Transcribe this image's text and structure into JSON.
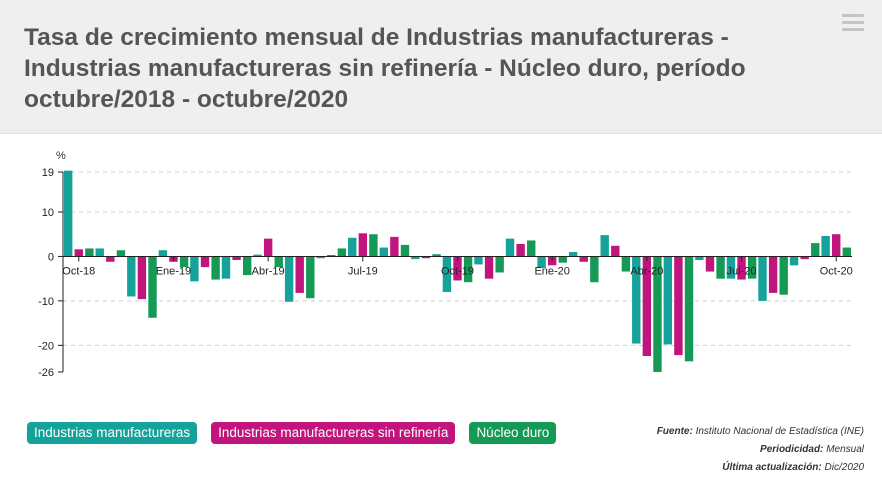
{
  "header": {
    "title": "Tasa de crecimiento mensual de Industrias manufactureras - Industrias manufactureras sin refinería - Núcleo duro, período octubre/2018 - octubre/2020",
    "menu_icon": "hamburger-menu-icon"
  },
  "legend": {
    "items": [
      {
        "label": "Industrias manufactureras",
        "color": "#14a29a"
      },
      {
        "label": "Industrias manufactureras sin refinería",
        "color": "#c1157d"
      },
      {
        "label": "Núcleo duro",
        "color": "#159a56"
      }
    ]
  },
  "source": {
    "fuente_label": "Fuente:",
    "fuente_value": "Instituto Nacional de Estadística (INE)",
    "periodicidad_label": "Periodicidad:",
    "periodicidad_value": "Mensual",
    "actualizacion_label": "Última actualización:",
    "actualizacion_value": "Dic/2020"
  },
  "chart_data": {
    "type": "bar",
    "y_unit": "%",
    "ylim": [
      -26,
      19
    ],
    "y_ticks": [
      19,
      10,
      0,
      -10,
      -20,
      -26
    ],
    "grid": true,
    "legend_position": "bottom-left",
    "categories": [
      "Oct-18",
      "Nov-18",
      "Dic-18",
      "Ene-19",
      "Feb-19",
      "Mar-19",
      "Abr-19",
      "May-19",
      "Jun-19",
      "Jul-19",
      "Ago-19",
      "Sep-19",
      "Oct-19",
      "Nov-19",
      "Dic-19",
      "Ene-20",
      "Feb-20",
      "Mar-20",
      "Abr-20",
      "May-20",
      "Jun-20",
      "Jul-20",
      "Ago-20",
      "Sep-20",
      "Oct-20"
    ],
    "x_tick_labels": [
      "Oct-18",
      "Ene-19",
      "Abr-19",
      "Jul-19",
      "Oct-19",
      "Ene-20",
      "Abr-20",
      "Jul-20",
      "Oct-20"
    ],
    "x_tick_label_indices": [
      0,
      3,
      6,
      9,
      12,
      15,
      18,
      21,
      24
    ],
    "series": [
      {
        "name": "Industrias manufactureras",
        "color": "#14a29a",
        "values": [
          19.3,
          1.8,
          -9.0,
          1.4,
          -5.6,
          -5.0,
          0.4,
          -10.2,
          -0.4,
          4.2,
          2.0,
          -0.6,
          -8.0,
          -1.8,
          4.0,
          -2.6,
          1.0,
          4.8,
          -19.6,
          -19.8,
          -0.8,
          -5.0,
          -10.0,
          -2.0,
          4.6
        ]
      },
      {
        "name": "Industrias manufactureras sin refinería",
        "color": "#c1157d",
        "values": [
          1.6,
          -1.2,
          -9.6,
          -1.2,
          -2.4,
          -0.8,
          4.0,
          -8.2,
          0.3,
          5.2,
          4.4,
          -0.4,
          -5.4,
          -5.0,
          2.8,
          -2.0,
          -1.2,
          2.4,
          -22.4,
          -22.2,
          -3.4,
          -5.2,
          -8.2,
          -0.6,
          5.0
        ]
      },
      {
        "name": "Núcleo duro",
        "color": "#159a56",
        "values": [
          1.8,
          1.4,
          -13.8,
          -2.4,
          -5.2,
          -4.2,
          -2.4,
          -9.4,
          1.8,
          5.0,
          2.6,
          0.5,
          -5.8,
          -3.6,
          3.6,
          -1.4,
          -5.8,
          -3.4,
          -26.0,
          -23.6,
          -5.0,
          -5.0,
          -8.6,
          3.0,
          2.0
        ]
      }
    ]
  }
}
